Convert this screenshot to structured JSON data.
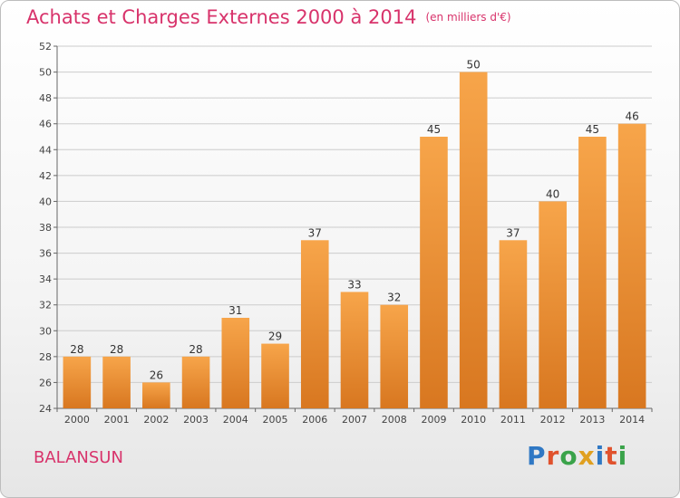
{
  "header": {
    "title": "Achats et Charges Externes 2000 à 2014",
    "unit": "(en milliers d'€)"
  },
  "footer": {
    "commune": "BALANSUN",
    "logo": "Proxiti"
  },
  "colors": {
    "title": "#d8336b",
    "bar_top": "#f7a54a",
    "bar_bottom": "#d87720",
    "grid": "#cccccc"
  },
  "chart_data": {
    "type": "bar",
    "title": "Achats et Charges Externes 2000 à 2014",
    "subtitle": "(en milliers d'€)",
    "categories": [
      "2000",
      "2001",
      "2002",
      "2003",
      "2004",
      "2005",
      "2006",
      "2007",
      "2008",
      "2009",
      "2010",
      "2011",
      "2012",
      "2013",
      "2014"
    ],
    "values": [
      28,
      28,
      26,
      28,
      31,
      29,
      37,
      33,
      32,
      45,
      50,
      37,
      40,
      45,
      46
    ],
    "ylim": [
      24,
      52
    ],
    "yticks": [
      24,
      26,
      28,
      30,
      32,
      34,
      36,
      38,
      40,
      42,
      44,
      46,
      48,
      50,
      52
    ],
    "grid": true,
    "data_labels": true
  }
}
